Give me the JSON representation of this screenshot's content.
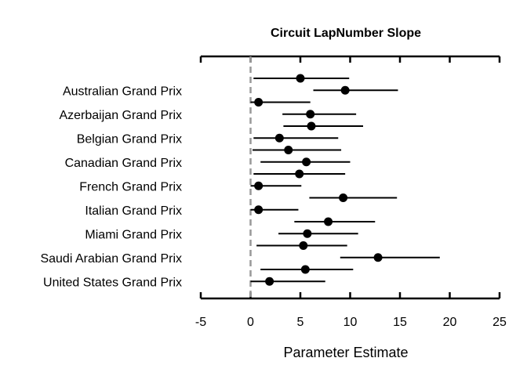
{
  "chart_data": {
    "type": "forest",
    "title": "Circuit LapNumber Slope",
    "xlabel": "Parameter Estimate",
    "xlim": [
      -5,
      25
    ],
    "xticks": [
      -5,
      0,
      5,
      10,
      15,
      20,
      25
    ],
    "reference_line": 0,
    "y_labels": [
      "Australian Grand Prix",
      "Azerbaijan Grand Prix",
      "Belgian Grand Prix",
      "Canadian Grand Prix",
      "French Grand Prix",
      "Italian Grand Prix",
      "Miami Grand Prix",
      "Saudi Arabian Grand Prix",
      "United States Grand Prix"
    ],
    "points": [
      {
        "estimate": 5.0,
        "lower": 0.3,
        "upper": 9.9
      },
      {
        "estimate": 9.5,
        "lower": 6.3,
        "upper": 14.8
      },
      {
        "estimate": 0.8,
        "lower": 0.0,
        "upper": 6.0
      },
      {
        "estimate": 6.0,
        "lower": 3.2,
        "upper": 10.6
      },
      {
        "estimate": 6.1,
        "lower": 3.3,
        "upper": 11.3
      },
      {
        "estimate": 2.9,
        "lower": 0.3,
        "upper": 8.8
      },
      {
        "estimate": 3.8,
        "lower": 0.2,
        "upper": 9.1
      },
      {
        "estimate": 5.6,
        "lower": 1.0,
        "upper": 10.0
      },
      {
        "estimate": 4.9,
        "lower": 0.3,
        "upper": 9.5
      },
      {
        "estimate": 0.8,
        "lower": 0.0,
        "upper": 5.1
      },
      {
        "estimate": 9.3,
        "lower": 5.9,
        "upper": 14.7
      },
      {
        "estimate": 0.8,
        "lower": 0.0,
        "upper": 4.8
      },
      {
        "estimate": 7.8,
        "lower": 4.4,
        "upper": 12.5
      },
      {
        "estimate": 5.7,
        "lower": 2.8,
        "upper": 10.8
      },
      {
        "estimate": 5.3,
        "lower": 0.6,
        "upper": 9.7
      },
      {
        "estimate": 12.8,
        "lower": 9.0,
        "upper": 19.0
      },
      {
        "estimate": 5.5,
        "lower": 1.0,
        "upper": 10.3
      },
      {
        "estimate": 1.9,
        "lower": 0.0,
        "upper": 7.5
      }
    ],
    "colors": {
      "points": "#000000",
      "reference_line": "#999999"
    }
  }
}
